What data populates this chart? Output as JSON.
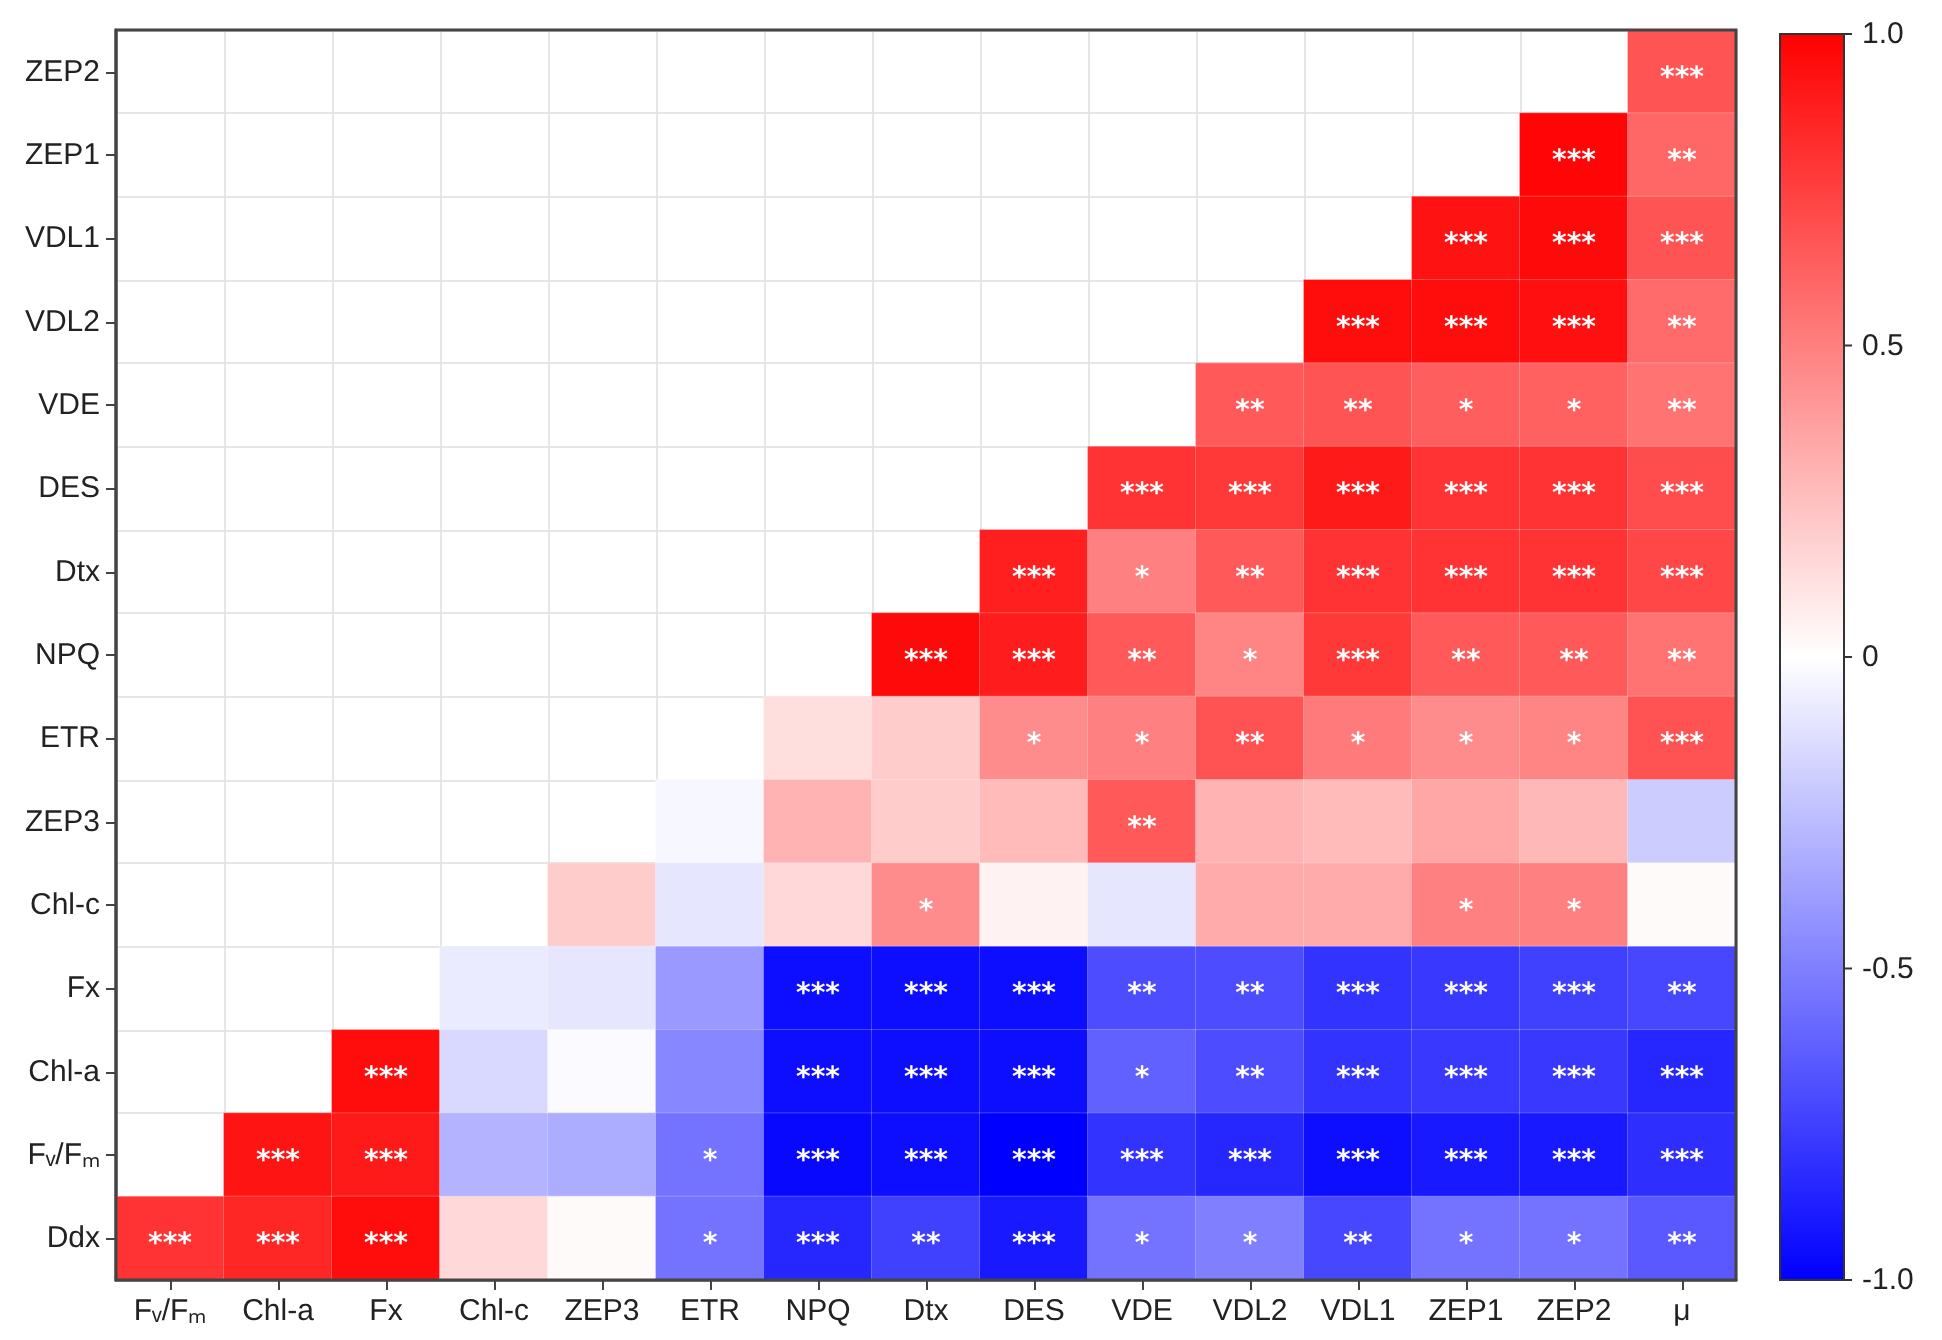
{
  "chart_data": {
    "type": "heatmap",
    "categories": [
      "Fᵥ/Fₘ",
      "Chl-a",
      "Fx",
      "Chl-c",
      "ZEP3",
      "ETR",
      "NPQ",
      "Dtx",
      "DES",
      "VDE",
      "VDL2",
      "VDL1",
      "ZEP1",
      "ZEP2",
      "μ"
    ],
    "y_categories": [
      "ZEP2",
      "ZEP1",
      "VDL1",
      "VDL2",
      "VDE",
      "DES",
      "Dtx",
      "NPQ",
      "ETR",
      "ZEP3",
      "Chl-c",
      "Fx",
      "Chl-a",
      "Fᵥ/Fₘ",
      "Ddx"
    ],
    "cells": [
      [
        null,
        null,
        null,
        null,
        null,
        null,
        null,
        null,
        null,
        null,
        null,
        null,
        null,
        null,
        0.67
      ],
      [
        null,
        null,
        null,
        null,
        null,
        null,
        null,
        null,
        null,
        null,
        null,
        null,
        null,
        0.98,
        0.6
      ],
      [
        null,
        null,
        null,
        null,
        null,
        null,
        null,
        null,
        null,
        null,
        null,
        null,
        0.93,
        0.96,
        0.67
      ],
      [
        null,
        null,
        null,
        null,
        null,
        null,
        null,
        null,
        null,
        null,
        null,
        0.95,
        0.95,
        0.94,
        0.58
      ],
      [
        null,
        null,
        null,
        null,
        null,
        null,
        null,
        null,
        null,
        null,
        0.65,
        0.67,
        0.63,
        0.62,
        0.55
      ],
      [
        null,
        null,
        null,
        null,
        null,
        null,
        null,
        null,
        null,
        0.8,
        0.78,
        0.9,
        0.8,
        0.8,
        0.7
      ],
      [
        null,
        null,
        null,
        null,
        null,
        null,
        null,
        null,
        0.88,
        0.5,
        0.65,
        0.8,
        0.8,
        0.8,
        0.72
      ],
      [
        null,
        null,
        null,
        null,
        null,
        null,
        null,
        0.96,
        0.89,
        0.65,
        0.48,
        0.78,
        0.65,
        0.65,
        0.55
      ],
      [
        null,
        null,
        null,
        null,
        null,
        null,
        0.13,
        0.2,
        0.45,
        0.5,
        0.68,
        0.52,
        0.45,
        0.48,
        0.68
      ],
      [
        null,
        null,
        null,
        null,
        null,
        -0.03,
        0.3,
        0.2,
        0.27,
        0.65,
        0.3,
        0.27,
        0.35,
        0.28,
        -0.2
      ],
      [
        null,
        null,
        null,
        null,
        0.2,
        -0.1,
        0.15,
        0.45,
        0.05,
        -0.1,
        0.33,
        0.33,
        0.5,
        0.5,
        0.02
      ],
      [
        null,
        null,
        null,
        -0.08,
        -0.1,
        -0.4,
        -0.95,
        -0.95,
        -0.95,
        -0.7,
        -0.7,
        -0.8,
        -0.78,
        -0.75,
        -0.72
      ],
      [
        null,
        null,
        0.95,
        -0.15,
        -0.02,
        -0.47,
        -0.95,
        -0.95,
        -0.95,
        -0.62,
        -0.7,
        -0.8,
        -0.78,
        -0.78,
        -0.85
      ],
      [
        null,
        0.92,
        0.9,
        -0.3,
        -0.32,
        -0.55,
        -0.97,
        -0.95,
        -1.0,
        -0.8,
        -0.85,
        -0.95,
        -0.9,
        -0.9,
        -0.82
      ],
      [
        0.8,
        0.85,
        0.95,
        0.15,
        0.02,
        -0.55,
        -0.85,
        -0.75,
        -0.9,
        -0.55,
        -0.5,
        -0.72,
        -0.55,
        -0.55,
        -0.65
      ]
    ],
    "cell_labels": [
      [
        null,
        null,
        null,
        null,
        null,
        null,
        null,
        null,
        null,
        null,
        null,
        null,
        null,
        null,
        "***"
      ],
      [
        null,
        null,
        null,
        null,
        null,
        null,
        null,
        null,
        null,
        null,
        null,
        null,
        null,
        "***",
        "**"
      ],
      [
        null,
        null,
        null,
        null,
        null,
        null,
        null,
        null,
        null,
        null,
        null,
        null,
        "***",
        "***",
        "***"
      ],
      [
        null,
        null,
        null,
        null,
        null,
        null,
        null,
        null,
        null,
        null,
        null,
        "***",
        "***",
        "***",
        "**"
      ],
      [
        null,
        null,
        null,
        null,
        null,
        null,
        null,
        null,
        null,
        null,
        "**",
        "**",
        "*",
        "*",
        "**"
      ],
      [
        null,
        null,
        null,
        null,
        null,
        null,
        null,
        null,
        null,
        "***",
        "***",
        "***",
        "***",
        "***",
        "***"
      ],
      [
        null,
        null,
        null,
        null,
        null,
        null,
        null,
        null,
        "***",
        "*",
        "**",
        "***",
        "***",
        "***",
        "***"
      ],
      [
        null,
        null,
        null,
        null,
        null,
        null,
        null,
        "***",
        "***",
        "**",
        "*",
        "***",
        "**",
        "**",
        "**"
      ],
      [
        null,
        null,
        null,
        null,
        null,
        null,
        null,
        null,
        "*",
        "*",
        "**",
        "*",
        "*",
        "*",
        "***"
      ],
      [
        null,
        null,
        null,
        null,
        null,
        null,
        null,
        null,
        null,
        "**",
        null,
        null,
        null,
        null,
        null
      ],
      [
        null,
        null,
        null,
        null,
        null,
        null,
        null,
        "*",
        null,
        null,
        null,
        null,
        "*",
        "*",
        null
      ],
      [
        null,
        null,
        null,
        null,
        null,
        null,
        "***",
        "***",
        "***",
        "**",
        "**",
        "***",
        "***",
        "***",
        "**"
      ],
      [
        null,
        null,
        "***",
        null,
        null,
        null,
        "***",
        "***",
        "***",
        "*",
        "**",
        "***",
        "***",
        "***",
        "***"
      ],
      [
        null,
        "***",
        "***",
        null,
        null,
        "*",
        "***",
        "***",
        "***",
        "***",
        "***",
        "***",
        "***",
        "***",
        "***"
      ],
      [
        "***",
        "***",
        "***",
        null,
        null,
        "*",
        "***",
        "**",
        "***",
        "*",
        "*",
        "**",
        "*",
        "*",
        "**"
      ]
    ],
    "clim": [
      -1.0,
      1.0
    ],
    "cticks": [
      {
        "value": 1.0,
        "label": "1.0"
      },
      0.5,
      0,
      -0.5,
      {
        "value": -1.0,
        "label": "-1.0"
      }
    ],
    "grid": true
  }
}
